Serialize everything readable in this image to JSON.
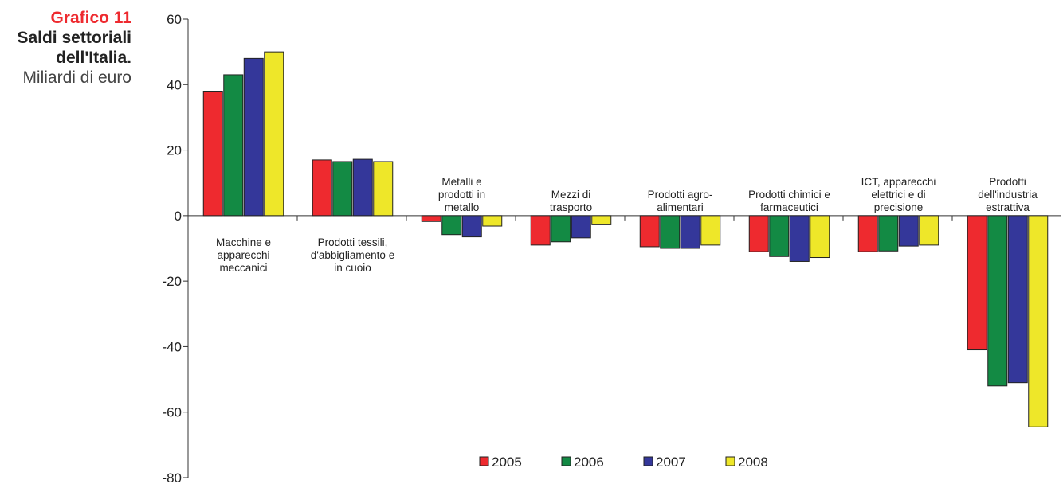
{
  "caption": {
    "number": "Grafico 11",
    "title_lines": [
      "Saldi settoriali",
      "dell'Italia."
    ],
    "unit": "Miliardi di euro"
  },
  "chart_data": {
    "type": "bar",
    "ylim": [
      -80,
      60
    ],
    "yticks": [
      60,
      40,
      20,
      0,
      -20,
      -40,
      -60,
      -80
    ],
    "legend_position": "bottom",
    "grid": false,
    "categories": [
      [
        "Macchine e",
        "apparecchi",
        "meccanici"
      ],
      [
        "Prodotti tessili,",
        "d'abbigliamento e",
        "in cuoio"
      ],
      [
        "Metalli e",
        "prodotti in",
        "metallo"
      ],
      [
        "Mezzi di",
        "trasporto"
      ],
      [
        "Prodotti agro-",
        "alimentari"
      ],
      [
        "Prodotti chimici e",
        "farmaceutici"
      ],
      [
        "ICT, apparecchi",
        "elettrici e di",
        "precisione"
      ],
      [
        "Prodotti",
        "dell'industria",
        "estrattiva"
      ]
    ],
    "series": [
      {
        "name": "2005",
        "color": "#ee2a2f",
        "values": [
          38,
          17,
          -1.8,
          -9,
          -9.5,
          -11,
          -11,
          -41
        ]
      },
      {
        "name": "2006",
        "color": "#138a44",
        "values": [
          43,
          16.5,
          -5.8,
          -8,
          -10,
          -12.5,
          -10.8,
          -52
        ]
      },
      {
        "name": "2007",
        "color": "#34379a",
        "values": [
          48,
          17.2,
          -6.5,
          -6.8,
          -10,
          -14,
          -9.3,
          -51
        ]
      },
      {
        "name": "2008",
        "color": "#eee729",
        "values": [
          50,
          16.5,
          -3.2,
          -2.8,
          -9,
          -12.8,
          -9,
          -64.5
        ]
      }
    ]
  }
}
